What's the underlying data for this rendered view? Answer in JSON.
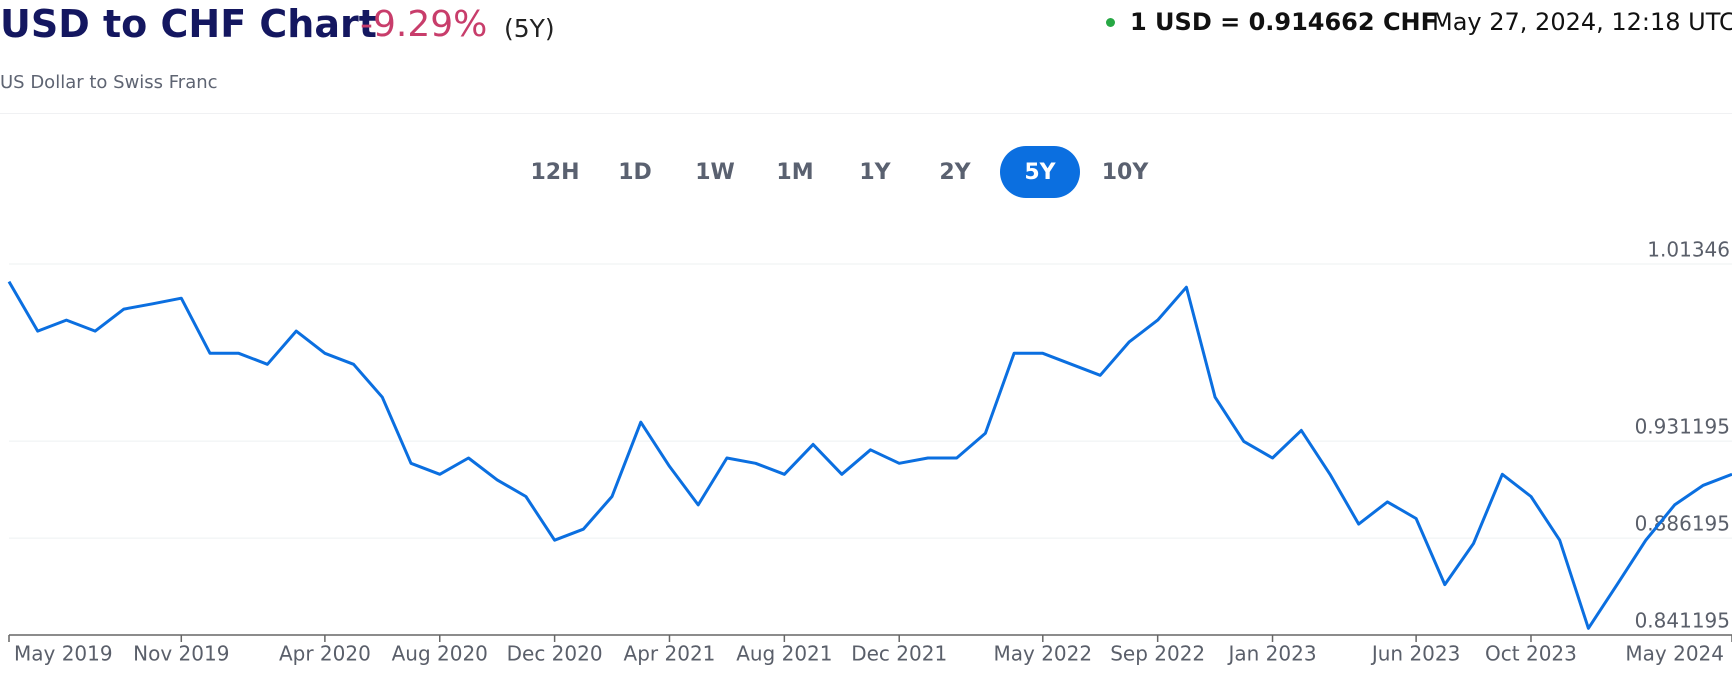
{
  "chart_data": {
    "type": "line",
    "title": "USD to CHF Chart",
    "change": "-9.29%",
    "period": "(5Y)",
    "subtitle": "US Dollar to Swiss Franc",
    "rate": "1 USD = 0.914662 CHF",
    "timestamp": "May 27, 2024, 12:18 UTC",
    "ranges": [
      "12H",
      "1D",
      "1W",
      "1M",
      "1Y",
      "2Y",
      "5Y",
      "10Y"
    ],
    "active_range": "5Y",
    "x": [
      "2019-05",
      "2019-06",
      "2019-07",
      "2019-08",
      "2019-09",
      "2019-10",
      "2019-11",
      "2019-12",
      "2020-01",
      "2020-02",
      "2020-03",
      "2020-04",
      "2020-05",
      "2020-06",
      "2020-07",
      "2020-08",
      "2020-09",
      "2020-10",
      "2020-11",
      "2020-12",
      "2021-01",
      "2021-02",
      "2021-03",
      "2021-04",
      "2021-05",
      "2021-06",
      "2021-07",
      "2021-08",
      "2021-09",
      "2021-10",
      "2021-11",
      "2021-12",
      "2022-01",
      "2022-02",
      "2022-03",
      "2022-04",
      "2022-05",
      "2022-06",
      "2022-07",
      "2022-08",
      "2022-09",
      "2022-10",
      "2022-11",
      "2022-12",
      "2023-01",
      "2023-02",
      "2023-03",
      "2023-04",
      "2023-05",
      "2023-06",
      "2023-07",
      "2023-08",
      "2023-09",
      "2023-10",
      "2023-11",
      "2023-12",
      "2024-01",
      "2024-02",
      "2024-03",
      "2024-04",
      "2024-05"
    ],
    "series": [
      {
        "name": "USD/CHF",
        "color": "#0b6fe0",
        "values": [
          1.0053,
          0.9823,
          0.9874,
          0.9823,
          0.9925,
          0.995,
          0.9976,
          0.972,
          0.972,
          0.9669,
          0.9823,
          0.972,
          0.9669,
          0.9516,
          0.9209,
          0.9158,
          0.9234,
          0.9132,
          0.9055,
          0.8852,
          0.8903,
          0.9055,
          0.94,
          0.9195,
          0.9016,
          0.9234,
          0.9209,
          0.9158,
          0.9297,
          0.9158,
          0.9272,
          0.9209,
          0.9234,
          0.9234,
          0.9349,
          0.972,
          0.972,
          0.9669,
          0.9618,
          0.9772,
          0.9874,
          1.0027,
          0.9516,
          0.9311,
          0.9234,
          0.9362,
          0.9158,
          0.8927,
          0.903,
          0.8953,
          0.8646,
          0.8837,
          0.9158,
          0.9055,
          0.8852,
          0.8443,
          0.8646,
          0.8852,
          0.9016,
          0.9107,
          0.9158
        ]
      }
    ],
    "ylim": [
      0.841195,
      1.01346
    ],
    "yticks": [
      0.841195,
      0.886195,
      0.931195,
      1.01346
    ],
    "xticks": [
      {
        "value": "2019-05",
        "label": "May 2019"
      },
      {
        "value": "2019-11",
        "label": "Nov 2019"
      },
      {
        "value": "2020-04",
        "label": "Apr 2020"
      },
      {
        "value": "2020-08",
        "label": "Aug 2020"
      },
      {
        "value": "2020-12",
        "label": "Dec 2020"
      },
      {
        "value": "2021-04",
        "label": "Apr 2021"
      },
      {
        "value": "2021-08",
        "label": "Aug 2021"
      },
      {
        "value": "2021-12",
        "label": "Dec 2021"
      },
      {
        "value": "2022-05",
        "label": "May 2022"
      },
      {
        "value": "2022-09",
        "label": "Sep 2022"
      },
      {
        "value": "2023-01",
        "label": "Jan 2023"
      },
      {
        "value": "2023-06",
        "label": "Jun 2023"
      },
      {
        "value": "2023-10",
        "label": "Oct 2023"
      },
      {
        "value": "2024-05",
        "label": "May 2024"
      }
    ],
    "grid": true
  }
}
